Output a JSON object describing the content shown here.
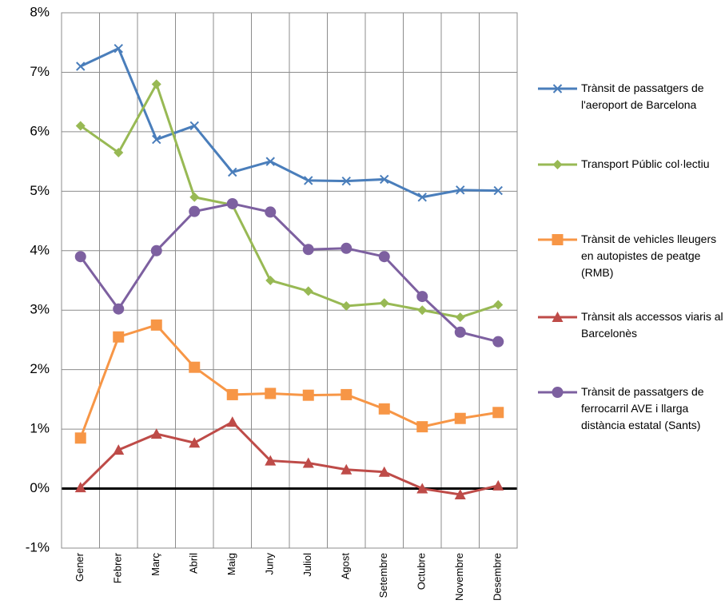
{
  "chart_data": {
    "type": "line",
    "categories": [
      "Gener",
      "Febrer",
      "Març",
      "Abril",
      "Maig",
      "Juny",
      "Juliol",
      "Agost",
      "Setembre",
      "Octubre",
      "Novembre",
      "Desembre"
    ],
    "ylim": [
      -1,
      8
    ],
    "yticks": [
      {
        "value": -1,
        "label": "-1%"
      },
      {
        "value": 0,
        "label": "0%"
      },
      {
        "value": 1,
        "label": "1%"
      },
      {
        "value": 2,
        "label": "2%"
      },
      {
        "value": 3,
        "label": "3%"
      },
      {
        "value": 4,
        "label": "4%"
      },
      {
        "value": 5,
        "label": "5%"
      },
      {
        "value": 6,
        "label": "6%"
      },
      {
        "value": 7,
        "label": "7%"
      },
      {
        "value": 8,
        "label": "8%"
      }
    ],
    "grid": true,
    "legend": "right",
    "series": [
      {
        "name": "Trànsit de passatgers de l'aeroport de Barcelona",
        "color": "#4a7ebb",
        "marker": "x",
        "values": [
          7.1,
          7.4,
          5.87,
          6.1,
          5.32,
          5.5,
          5.18,
          5.17,
          5.2,
          4.9,
          5.02,
          5.01
        ]
      },
      {
        "name": "Transport Públic col·lectiu",
        "color": "#98b954",
        "marker": "diamond",
        "values": [
          6.1,
          5.65,
          6.8,
          4.9,
          4.77,
          3.5,
          3.32,
          3.07,
          3.12,
          3.0,
          2.88,
          3.09
        ]
      },
      {
        "name": "Trànsit de vehicles lleugers en autopistes de peatge (RMB)",
        "color": "#f79646",
        "marker": "square",
        "values": [
          0.85,
          2.55,
          2.75,
          2.04,
          1.58,
          1.6,
          1.57,
          1.58,
          1.34,
          1.04,
          1.18,
          1.28
        ]
      },
      {
        "name": "Trànsit als accessos viaris al Barcelonès",
        "color": "#be4b48",
        "marker": "triangle",
        "values": [
          0.02,
          0.65,
          0.92,
          0.77,
          1.12,
          0.47,
          0.43,
          0.32,
          0.28,
          0.0,
          -0.1,
          0.05
        ]
      },
      {
        "name": "Trànsit de passatgers de ferrocarril AVE i llarga distància estatal (Sants)",
        "color": "#7d60a0",
        "marker": "circle",
        "values": [
          3.9,
          3.02,
          4.0,
          4.66,
          4.79,
          4.65,
          4.02,
          4.04,
          3.9,
          3.23,
          2.63,
          2.47
        ]
      }
    ]
  }
}
